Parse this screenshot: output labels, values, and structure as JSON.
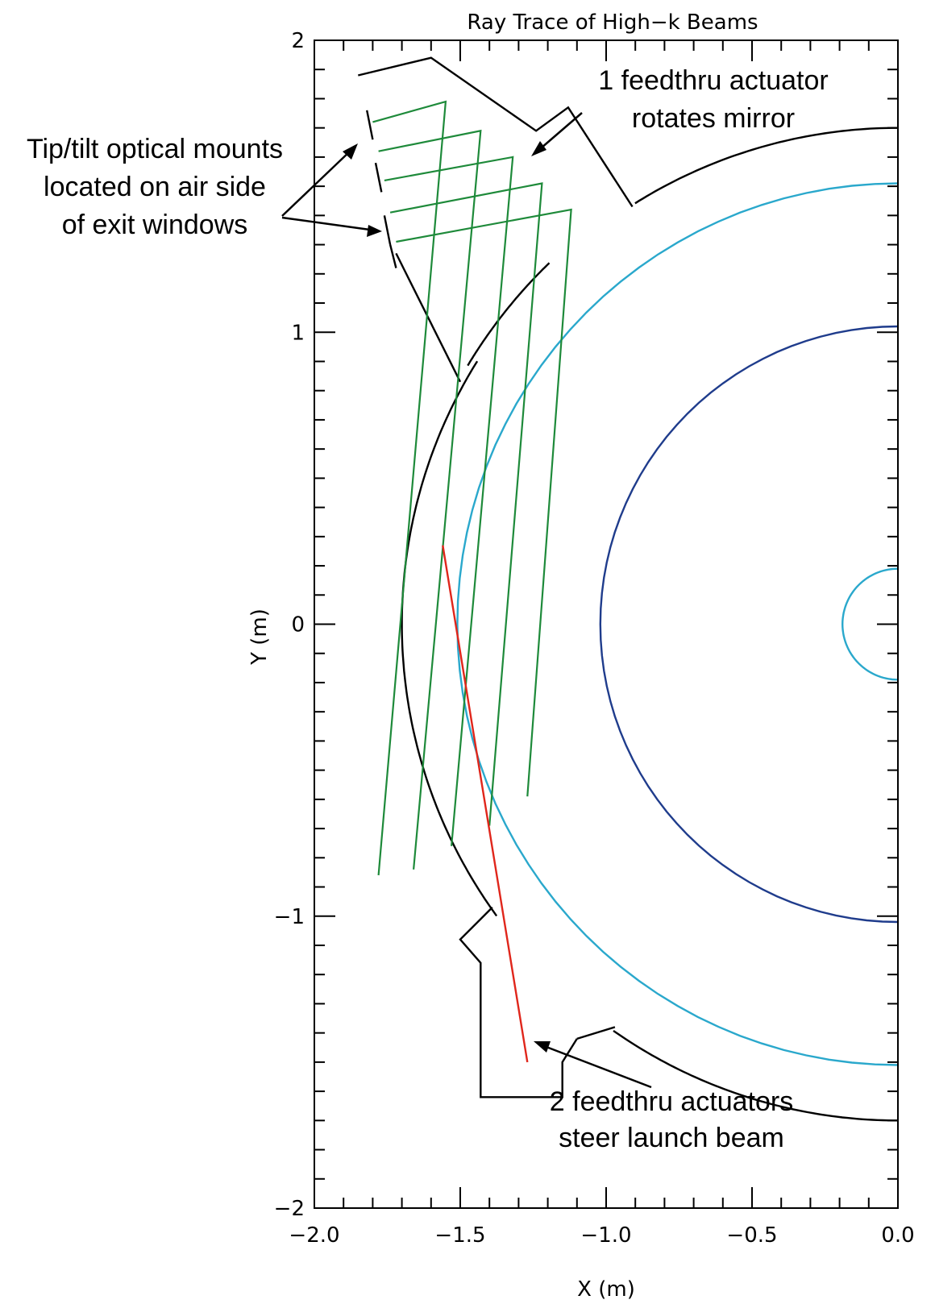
{
  "chart_data": {
    "type": "line",
    "title": "Ray Trace of High−k Beams",
    "xlabel": "X (m)",
    "ylabel": "Y (m)",
    "xlim": [
      -2.0,
      0.0
    ],
    "ylim": [
      -2.0,
      2.0
    ],
    "x_ticks": [
      {
        "value": -2.0,
        "label": "−2.0"
      },
      {
        "value": -1.5,
        "label": "−1.5"
      },
      {
        "value": -1.0,
        "label": "−1.0"
      },
      {
        "value": -0.5,
        "label": "−0.5"
      },
      {
        "value": 0.0,
        "label": "0.0"
      }
    ],
    "y_ticks": [
      {
        "value": -2,
        "label": "−2"
      },
      {
        "value": -1,
        "label": "−1"
      },
      {
        "value": 0,
        "label": "0"
      },
      {
        "value": 1,
        "label": "1"
      },
      {
        "value": 2,
        "label": "2"
      }
    ],
    "x_minor_step": 0.1,
    "y_minor_step": 0.1,
    "grid": false,
    "legend": "none",
    "circles": [
      {
        "cx": 0.0,
        "cy": 0.0,
        "r": 1.02,
        "color": "#1f3c8c"
      },
      {
        "cx": 0.0,
        "cy": 0.0,
        "r": 1.51,
        "color": "#2aa8cc"
      },
      {
        "cx": 0.0,
        "cy": 0.0,
        "r": 0.19,
        "color": "#2aa8cc"
      }
    ],
    "vessel": {
      "color": "#000000",
      "outer_arc": {
        "r": 1.7,
        "from_deg": 90,
        "to_deg": 148
      },
      "inner_mirror_arc": {
        "r": 1.72,
        "from_deg": 134,
        "to_deg": 149
      },
      "paths": [
        [
          [
            -1.85,
            1.88
          ],
          [
            -1.6,
            1.94
          ],
          [
            -1.24,
            1.69
          ],
          [
            -1.13,
            1.77
          ],
          [
            -0.91,
            1.43
          ]
        ],
        [
          [
            -1.72,
            1.27
          ],
          [
            -1.5,
            0.83
          ]
        ],
        [
          [
            -1.1,
            -1.42
          ],
          [
            -1.15,
            -1.5
          ],
          [
            -1.15,
            -1.62
          ],
          [
            -1.43,
            -1.62
          ],
          [
            -1.43,
            -1.16
          ],
          [
            -1.5,
            -1.08
          ],
          [
            -1.39,
            -0.97
          ]
        ],
        [
          [
            -1.1,
            -1.42
          ],
          [
            -0.97,
            -1.38
          ]
        ]
      ],
      "lower_arc": {
        "r": 1.7,
        "from_deg": 180,
        "to_deg": 216
      },
      "upper_arc": {
        "r": 1.7,
        "from_deg": 148,
        "to_deg": 180
      },
      "right_lower_arc": {
        "r": 1.7,
        "from_deg": 235,
        "to_deg": 270
      }
    },
    "window_segments": [
      [
        [
          -1.82,
          1.76
        ],
        [
          -1.8,
          1.66
        ]
      ],
      [
        [
          -1.79,
          1.58
        ],
        [
          -1.77,
          1.48
        ]
      ],
      [
        [
          -1.76,
          1.4
        ],
        [
          -1.74,
          1.3
        ]
      ],
      [
        [
          -1.74,
          1.3
        ],
        [
          -1.72,
          1.22
        ]
      ]
    ],
    "green_beams": {
      "color": "#1e8a3a",
      "rays": [
        [
          [
            -1.8,
            1.72
          ],
          [
            -1.55,
            1.79
          ],
          [
            -1.78,
            -0.86
          ]
        ],
        [
          [
            -1.78,
            1.62
          ],
          [
            -1.43,
            1.69
          ],
          [
            -1.66,
            -0.84
          ]
        ],
        [
          [
            -1.76,
            1.52
          ],
          [
            -1.32,
            1.6
          ],
          [
            -1.53,
            -0.76
          ]
        ],
        [
          [
            -1.74,
            1.41
          ],
          [
            -1.22,
            1.51
          ],
          [
            -1.4,
            -0.69
          ]
        ],
        [
          [
            -1.72,
            1.31
          ],
          [
            -1.12,
            1.42
          ],
          [
            -1.27,
            -0.59
          ]
        ]
      ]
    },
    "red_beam": {
      "color": "#e0261b",
      "points": [
        [
          -1.56,
          0.27
        ],
        [
          -1.27,
          -1.5
        ]
      ]
    },
    "annotations": [
      {
        "id": "top",
        "lines": [
          "1 feedthru actuator",
          "rotates mirror"
        ]
      },
      {
        "id": "left",
        "lines": [
          "Tip/tilt optical mounts",
          "located on air side",
          "of exit windows"
        ]
      },
      {
        "id": "bottom",
        "lines": [
          "2 feedthru actuators",
          "steer launch beam"
        ]
      }
    ]
  }
}
